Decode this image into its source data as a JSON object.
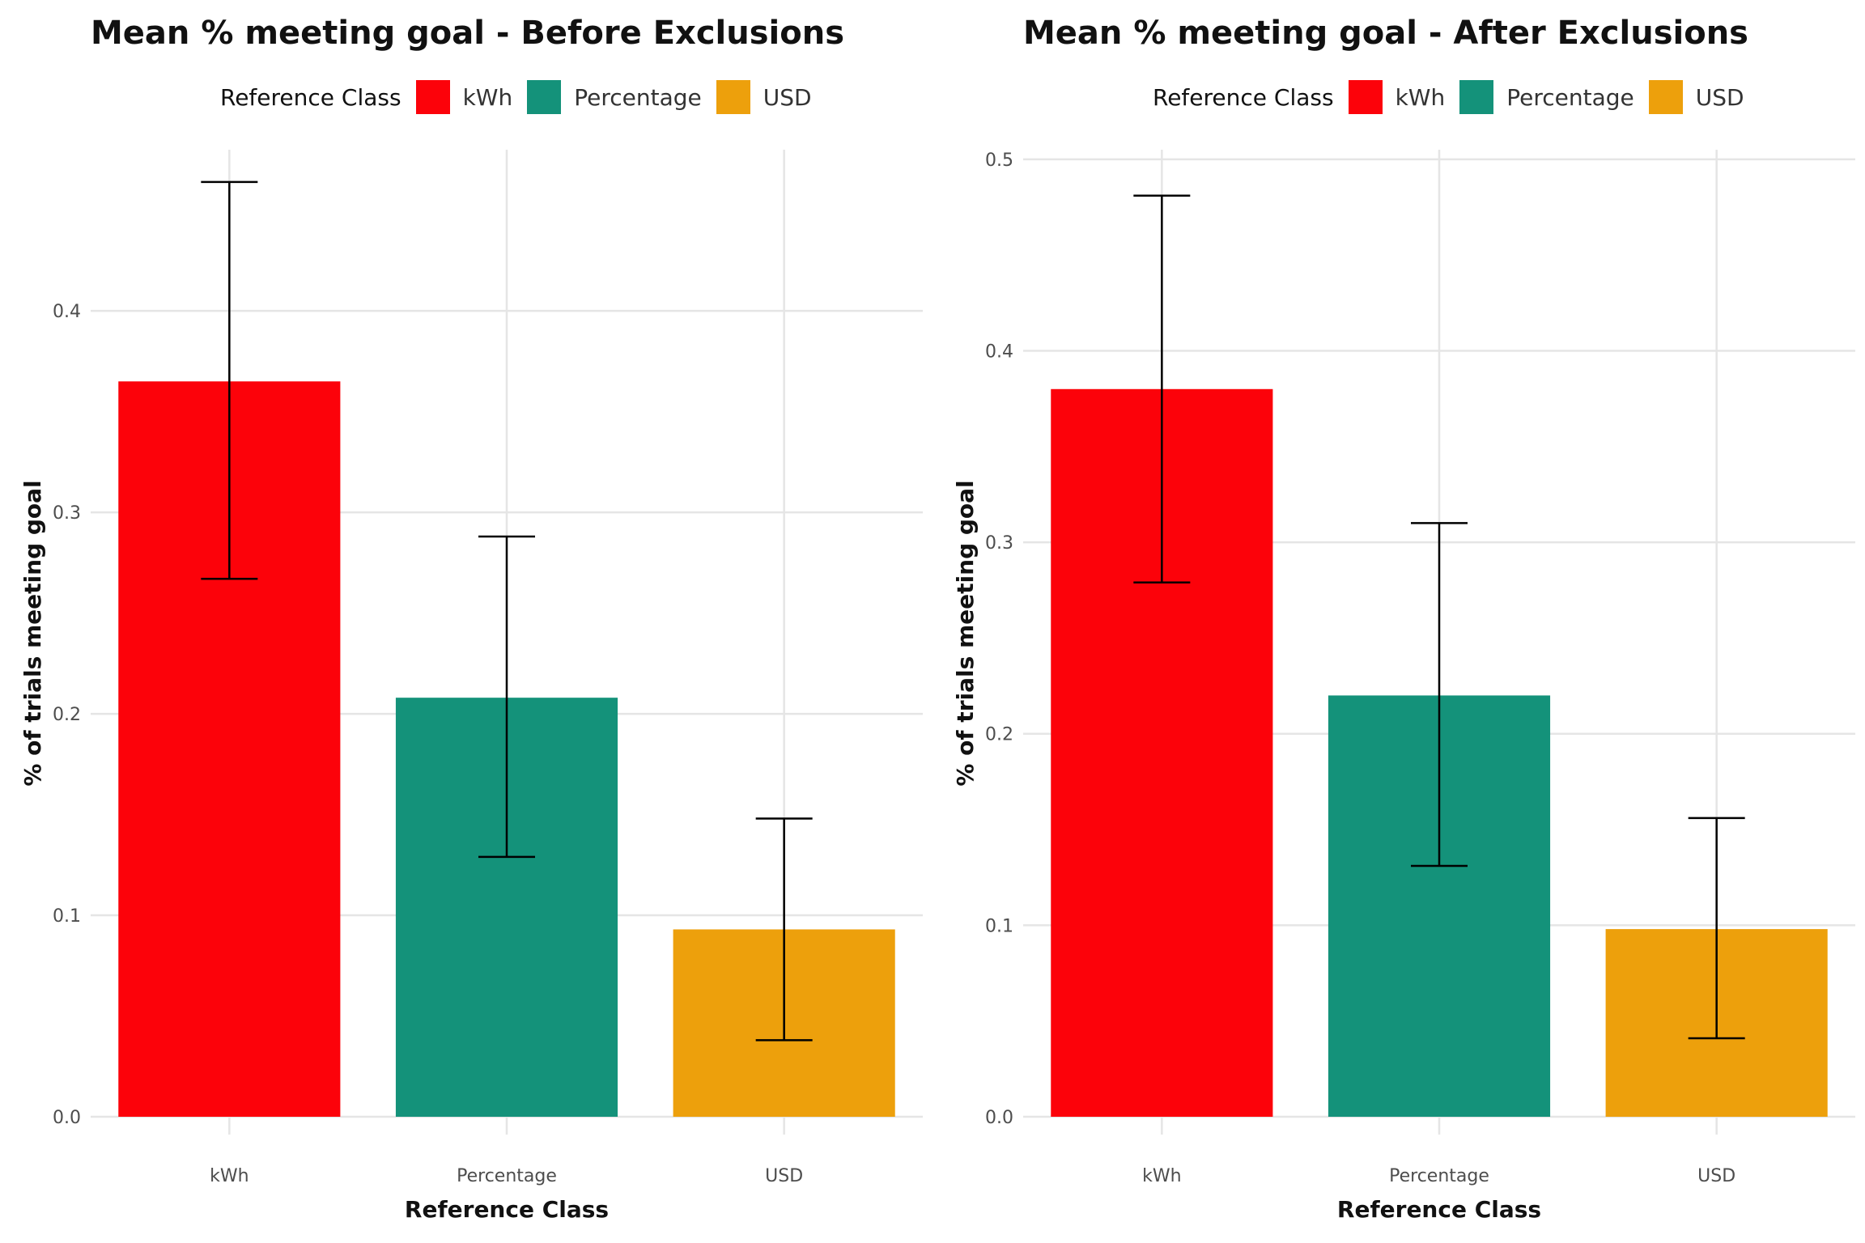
{
  "chart_data": [
    {
      "type": "bar",
      "title": "Mean % meeting goal - Before Exclusions",
      "xlabel": "Reference Class",
      "ylabel": "% of trials meeting goal",
      "categories": [
        "kWh",
        "Percentage",
        "USD"
      ],
      "values": [
        0.365,
        0.208,
        0.093
      ],
      "error_low": [
        0.267,
        0.129,
        0.038
      ],
      "error_high": [
        0.464,
        0.288,
        0.148
      ],
      "ylim": [
        0,
        0.48
      ],
      "yticks": [
        0.0,
        0.1,
        0.2,
        0.3,
        0.4
      ],
      "ytick_labels": [
        "0.0",
        "0.1",
        "0.2",
        "0.3",
        "0.4"
      ],
      "legend": {
        "title": "Reference Class",
        "position": "top",
        "entries": [
          "kWh",
          "Percentage",
          "USD"
        ]
      },
      "colors": [
        "#fc020a",
        "#14927a",
        "#eda00c"
      ],
      "grid": true
    },
    {
      "type": "bar",
      "title": "Mean % meeting goal - After Exclusions",
      "xlabel": "Reference Class",
      "ylabel": "% of trials meeting goal",
      "categories": [
        "kWh",
        "Percentage",
        "USD"
      ],
      "values": [
        0.38,
        0.22,
        0.098
      ],
      "error_low": [
        0.279,
        0.131,
        0.041
      ],
      "error_high": [
        0.481,
        0.31,
        0.156
      ],
      "ylim": [
        0,
        0.505
      ],
      "yticks": [
        0.0,
        0.1,
        0.2,
        0.3,
        0.4,
        0.5
      ],
      "ytick_labels": [
        "0.0",
        "0.1",
        "0.2",
        "0.3",
        "0.4",
        "0.5"
      ],
      "legend": {
        "title": "Reference Class",
        "position": "top",
        "entries": [
          "kWh",
          "Percentage",
          "USD"
        ]
      },
      "colors": [
        "#fc020a",
        "#14927a",
        "#eda00c"
      ],
      "grid": true
    }
  ]
}
